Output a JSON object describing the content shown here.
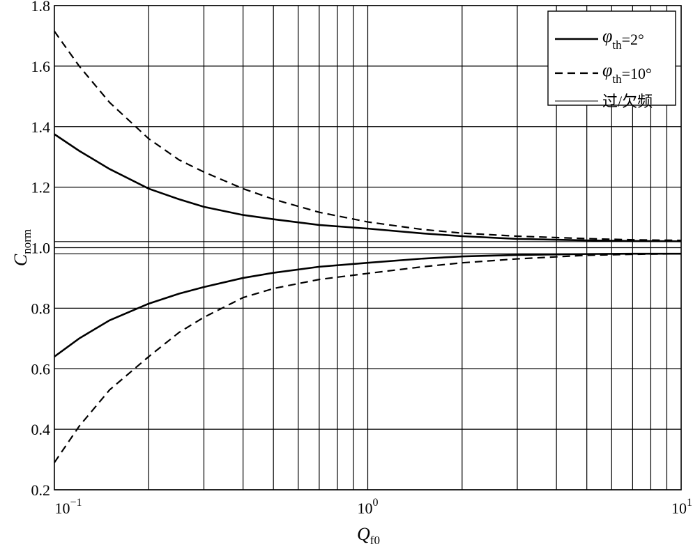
{
  "chart_data": {
    "type": "line",
    "title": "",
    "x_scale": "log",
    "xlim": [
      0.1,
      10
    ],
    "ylim": [
      0.2,
      1.8
    ],
    "grid": true,
    "legend_position": "top-right",
    "xlabel": {
      "main": "Q",
      "sub": "f0"
    },
    "ylabel": {
      "main": "C",
      "sub": "norm"
    },
    "x_ticks": [
      {
        "value": 0.1,
        "base": "10",
        "exp": "−1"
      },
      {
        "value": 1,
        "base": "10",
        "exp": "0"
      },
      {
        "value": 10,
        "base": "10",
        "exp": "1"
      }
    ],
    "y_ticks": [
      {
        "value": 0.2,
        "label": "0.2"
      },
      {
        "value": 0.4,
        "label": "0.4"
      },
      {
        "value": 0.6,
        "label": "0.6"
      },
      {
        "value": 0.8,
        "label": "0.8"
      },
      {
        "value": 1.0,
        "label": "1.0"
      },
      {
        "value": 1.2,
        "label": "1.2"
      },
      {
        "value": 1.4,
        "label": "1.4"
      },
      {
        "value": 1.6,
        "label": "1.6"
      },
      {
        "value": 1.8,
        "label": "1.8"
      }
    ],
    "legend": [
      {
        "sym": "φ",
        "sub": "th",
        "text": "=2°",
        "style": "solid-thick"
      },
      {
        "sym": "φ",
        "sub": "th",
        "text": "=10°",
        "style": "dashed"
      },
      {
        "sym": "",
        "sub": "",
        "text": "过/欠频",
        "style": "solid-thin"
      }
    ],
    "series": [
      {
        "legend_index": 0,
        "style": "solid-thick",
        "x": [
          0.1,
          0.12,
          0.15,
          0.2,
          0.25,
          0.3,
          0.4,
          0.5,
          0.7,
          1,
          1.5,
          2,
          3,
          5,
          7,
          10
        ],
        "y": [
          1.375,
          1.32,
          1.26,
          1.195,
          1.16,
          1.135,
          1.108,
          1.094,
          1.075,
          1.063,
          1.047,
          1.038,
          1.029,
          1.024,
          1.022,
          1.021
        ]
      },
      {
        "legend_index": 0,
        "style": "solid-thick",
        "x": [
          0.1,
          0.12,
          0.15,
          0.2,
          0.25,
          0.3,
          0.4,
          0.5,
          0.7,
          1,
          1.5,
          2,
          3,
          5,
          7,
          10
        ],
        "y": [
          0.64,
          0.7,
          0.76,
          0.815,
          0.848,
          0.87,
          0.9,
          0.917,
          0.937,
          0.95,
          0.964,
          0.971,
          0.976,
          0.979,
          0.98,
          0.98
        ]
      },
      {
        "legend_index": 1,
        "style": "dashed",
        "x": [
          0.1,
          0.12,
          0.15,
          0.2,
          0.25,
          0.3,
          0.4,
          0.5,
          0.7,
          1,
          1.5,
          2,
          3,
          5,
          7,
          10
        ],
        "y": [
          1.715,
          1.6,
          1.48,
          1.36,
          1.29,
          1.25,
          1.195,
          1.16,
          1.117,
          1.085,
          1.06,
          1.048,
          1.038,
          1.03,
          1.026,
          1.024
        ]
      },
      {
        "legend_index": 1,
        "style": "dashed",
        "x": [
          0.1,
          0.12,
          0.15,
          0.2,
          0.25,
          0.3,
          0.4,
          0.5,
          0.7,
          1,
          1.5,
          2,
          3,
          5,
          7,
          10
        ],
        "y": [
          0.29,
          0.41,
          0.53,
          0.64,
          0.72,
          0.77,
          0.835,
          0.865,
          0.895,
          0.915,
          0.937,
          0.95,
          0.963,
          0.975,
          0.978,
          0.98
        ]
      },
      {
        "legend_index": 2,
        "style": "solid-thin",
        "x": [
          0.1,
          10
        ],
        "y": [
          1.02,
          1.02
        ]
      },
      {
        "legend_index": 2,
        "style": "solid-thin",
        "x": [
          0.1,
          10
        ],
        "y": [
          1.0,
          1.0
        ]
      },
      {
        "legend_index": 2,
        "style": "solid-thin",
        "x": [
          0.1,
          10
        ],
        "y": [
          0.98,
          0.98
        ]
      }
    ]
  }
}
